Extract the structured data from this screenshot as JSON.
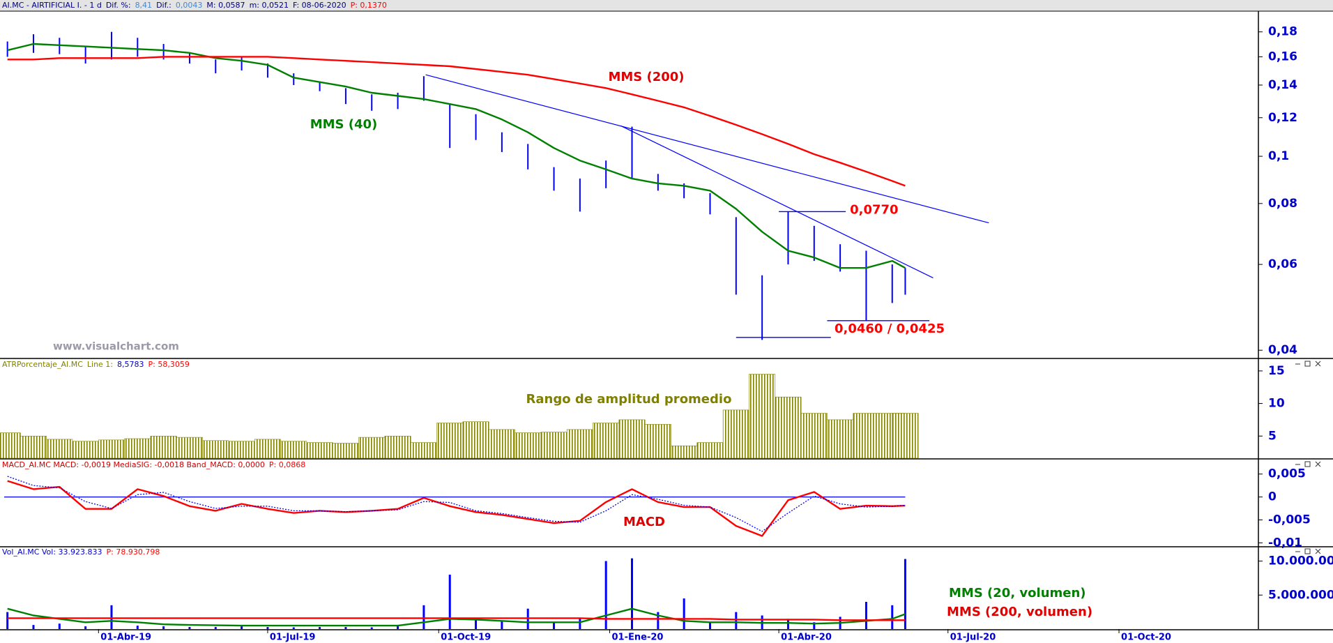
{
  "chart_data": {
    "type": "stock",
    "x": [
      "11-Feb-19",
      "25-Feb-19",
      "11-Mar-19",
      "25-Mar-19",
      "08-Abr-19",
      "22-Abr-19",
      "06-May-19",
      "20-May-19",
      "03-Jun-19",
      "17-Jun-19",
      "01-Jul-19",
      "15-Jul-19",
      "29-Jul-19",
      "12-Ago-19",
      "26-Ago-19",
      "09-Sep-19",
      "23-Sep-19",
      "07-Oct-19",
      "21-Oct-19",
      "04-Nov-19",
      "18-Nov-19",
      "02-Dic-19",
      "16-Dic-19",
      "30-Dic-19",
      "13-Ene-20",
      "27-Ene-20",
      "10-Feb-20",
      "24-Feb-20",
      "09-Mar-20",
      "23-Mar-20",
      "06-Abr-20",
      "20-Abr-20",
      "04-May-20",
      "18-May-20",
      "01-Jun-20",
      "08-Jun-20"
    ],
    "xlim": [
      "07-Feb-19",
      "15-Dic-20"
    ],
    "xticks": [
      "01-Abr-19",
      "01-Jul-19",
      "01-Oct-19",
      "01-Ene-20",
      "01-Abr-20",
      "01-Jul-20",
      "01-Oct-20"
    ],
    "panels": [
      {
        "type": "ohlc",
        "header": [
          {
            "text": "AI.MC - AIRTIFICIAL I. -  1 d",
            "color": "#000080"
          },
          {
            "text": "Dif. %:",
            "color": "#000080"
          },
          {
            "text": "8,41",
            "color": "#4a86c8"
          },
          {
            "text": "Dif.:",
            "color": "#000080"
          },
          {
            "text": "0,0043",
            "color": "#4a86c8"
          },
          {
            "text": "M: 0,0587",
            "color": "#000080"
          },
          {
            "text": "m: 0,0521",
            "color": "#000080"
          },
          {
            "text": "F: 08-06-2020",
            "color": "#000080"
          },
          {
            "text": "P: 0,1370",
            "color": "#ff0000"
          }
        ],
        "color": "#0000ff",
        "high": [
          0.172,
          0.178,
          0.175,
          0.168,
          0.18,
          0.175,
          0.17,
          0.163,
          0.158,
          0.16,
          0.155,
          0.148,
          0.142,
          0.138,
          0.134,
          0.135,
          0.146,
          0.128,
          0.122,
          0.112,
          0.106,
          0.095,
          0.09,
          0.098,
          0.115,
          0.092,
          0.088,
          0.084,
          0.075,
          0.057,
          0.077,
          0.072,
          0.066,
          0.064,
          0.06,
          0.059
        ],
        "low": [
          0.16,
          0.163,
          0.162,
          0.155,
          0.158,
          0.16,
          0.158,
          0.155,
          0.148,
          0.15,
          0.145,
          0.14,
          0.136,
          0.128,
          0.124,
          0.125,
          0.13,
          0.104,
          0.108,
          0.102,
          0.094,
          0.085,
          0.077,
          0.086,
          0.09,
          0.085,
          0.082,
          0.076,
          0.052,
          0.042,
          0.06,
          0.061,
          0.058,
          0.046,
          0.05,
          0.052
        ],
        "log": true,
        "ylim": [
          0.0386,
          0.1985
        ],
        "yticks": [
          {
            "value": 0.04,
            "label": "0,04"
          },
          {
            "value": 0.06,
            "label": "0,06"
          },
          {
            "value": 0.08,
            "label": "0,08"
          },
          {
            "value": 0.1,
            "label": "0,1"
          },
          {
            "value": 0.12,
            "label": "0,12"
          },
          {
            "value": 0.14,
            "label": "0,14"
          },
          {
            "value": 0.16,
            "label": "0,16"
          },
          {
            "value": 0.18,
            "label": "0,18"
          }
        ],
        "series": [
          {
            "name": "MMS (40)",
            "color": "#008000",
            "values": [
              0.165,
              0.17,
              0.169,
              0.168,
              0.167,
              0.166,
              0.165,
              0.163,
              0.159,
              0.157,
              0.154,
              0.145,
              0.142,
              0.139,
              0.135,
              0.133,
              0.131,
              0.128,
              0.125,
              0.119,
              0.112,
              0.104,
              0.098,
              0.094,
              0.09,
              0.088,
              0.087,
              0.085,
              0.078,
              0.07,
              0.064,
              0.062,
              0.059,
              0.059,
              0.061,
              0.059
            ]
          },
          {
            "name": "MMS (200)",
            "color": "#ff0000",
            "values": [
              0.158,
              0.158,
              0.159,
              0.159,
              0.159,
              0.159,
              0.16,
              0.16,
              0.16,
              0.16,
              0.16,
              0.159,
              0.158,
              0.157,
              0.156,
              0.155,
              0.154,
              0.153,
              0.151,
              0.149,
              0.147,
              0.144,
              0.141,
              0.138,
              0.134,
              0.13,
              0.126,
              0.121,
              0.116,
              0.111,
              0.106,
              0.101,
              0.097,
              0.093,
              0.089,
              0.087
            ]
          }
        ],
        "trendlines": [
          {
            "color": "#0000ff",
            "x": [
              "24-Sep-19",
              "23-Jul-20"
            ],
            "values": [
              0.147,
              0.073
            ]
          },
          {
            "color": "#0000ff",
            "x": [
              "07-Ene-20",
              "23-Jun-20"
            ],
            "values": [
              0.1155,
              0.0563
            ]
          }
        ],
        "levels": [
          {
            "value": 0.077,
            "label": "0,0770",
            "color": "#0000ff",
            "x": [
              "01-Abr-20",
              "07-May-20"
            ]
          },
          {
            "value": 0.046,
            "color": "#0000ff",
            "x": [
              "27-Abr-20",
              "21-Jun-20"
            ]
          },
          {
            "value": 0.0425,
            "color": "#0000ff",
            "x": [
              "09-Mar-20",
              "29-Abr-20"
            ]
          }
        ],
        "support_label": "0,0460 / 0,0425",
        "watermark": "www.visualchart.com"
      },
      {
        "type": "bar",
        "bar_style": "hatched",
        "header": [
          {
            "text": "ATRPorcentaje_AI.MC",
            "color": "#808000"
          },
          {
            "text": "Line 1:",
            "color": "#808000"
          },
          {
            "text": "8,5783",
            "color": "#0000cc"
          },
          {
            "text": "P: 58,3059",
            "color": "#ff0000"
          }
        ],
        "name": "Rango de amplitud promedio",
        "color": "#808000",
        "values": [
          5.5,
          5.0,
          4.5,
          4.2,
          4.4,
          4.6,
          5.0,
          4.8,
          4.3,
          4.2,
          4.5,
          4.2,
          4.0,
          3.9,
          4.8,
          5.0,
          4.0,
          7.0,
          7.2,
          6.0,
          5.5,
          5.6,
          6.0,
          7.0,
          7.5,
          6.8,
          3.5,
          4.0,
          9.0,
          14.5,
          11.0,
          8.5,
          7.5,
          8.5,
          8.5,
          8.5
        ],
        "ylim": [
          1.6,
          16.7
        ],
        "yticks": [
          5,
          10,
          15
        ]
      },
      {
        "type": "line",
        "header": [
          {
            "text": "MACD_AI.MC  MACD: -0,0019  MediaSIG: -0,0018  Band_MACD: 0,0000",
            "color": "#cc0000"
          },
          {
            "text": "P: 0,0868",
            "color": "#ff0000"
          }
        ],
        "band": 0,
        "band_color": "#0000ff",
        "ylim": [
          -0.0107,
          0.008
        ],
        "yticks": [
          {
            "value": 0.005,
            "label": "0,005"
          },
          0,
          {
            "value": -0.005,
            "label": "-0,005"
          },
          {
            "value": -0.01,
            "label": "-0,01"
          }
        ],
        "series": [
          {
            "name": "MACD",
            "color": "#ff0000",
            "values": [
              0.0035,
              0.0017,
              0.0022,
              -0.0026,
              -0.0026,
              0.0017,
              0.0002,
              -0.002,
              -0.003,
              -0.0015,
              -0.0026,
              -0.0035,
              -0.003,
              -0.0033,
              -0.003,
              -0.0026,
              -0.0002,
              -0.002,
              -0.0033,
              -0.0039,
              -0.0048,
              -0.0057,
              -0.0052,
              -0.0011,
              0.0017,
              -0.0011,
              -0.0022,
              -0.0022,
              -0.0063,
              -0.0085,
              -0.0007,
              0.0011,
              -0.0026,
              -0.0019,
              -0.002,
              -0.0019
            ]
          },
          {
            "color": "#0000ff",
            "style": "dotted",
            "values": [
              0.0045,
              0.0025,
              0.002,
              -0.001,
              -0.0025,
              0.0005,
              0.001,
              -0.001,
              -0.0025,
              -0.002,
              -0.002,
              -0.003,
              -0.003,
              -0.0032,
              -0.003,
              -0.0028,
              -0.001,
              -0.0012,
              -0.003,
              -0.0036,
              -0.0045,
              -0.0053,
              -0.0055,
              -0.003,
              0.0005,
              -0.0005,
              -0.0018,
              -0.0022,
              -0.0045,
              -0.0075,
              -0.0035,
              0.0002,
              -0.0015,
              -0.0022,
              -0.002,
              -0.0018
            ]
          }
        ]
      },
      {
        "type": "bar",
        "bar_style": "thin",
        "header": [
          {
            "text": "Vol_AI.MC  Vol: 33.923.833",
            "color": "#0000cc"
          },
          {
            "text": "P: 78.930.798",
            "color": "#ff0000"
          }
        ],
        "color": "#0000ff",
        "values": [
          2500000,
          600000,
          800000,
          400000,
          3500000,
          500000,
          400000,
          300000,
          300000,
          400000,
          300000,
          250000,
          300000,
          300000,
          250000,
          500000,
          3500000,
          8000000,
          1500000,
          1200000,
          3000000,
          1000000,
          1500000,
          10000000,
          10400000,
          2500000,
          4500000,
          1000000,
          2500000,
          2000000,
          1500000,
          1000000,
          1800000,
          4000000,
          3500000,
          10300000
        ],
        "ylim": [
          0,
          12000000
        ],
        "yticks": [
          {
            "value": 5000000,
            "label": "5.000.000"
          },
          {
            "value": 10000000,
            "label": "10.000.000"
          }
        ],
        "series": [
          {
            "name": "MMS (20, volumen)",
            "color": "#008000",
            "values": [
              3000000,
              2000000,
              1500000,
              1000000,
              1200000,
              1000000,
              700000,
              600000,
              550000,
              500000,
              500000,
              500000,
              500000,
              500000,
              500000,
              500000,
              1000000,
              1500000,
              1400000,
              1200000,
              1000000,
              1000000,
              1000000,
              2000000,
              3000000,
              2000000,
              1200000,
              1000000,
              1000000,
              900000,
              900000,
              800000,
              900000,
              1200000,
              1500000,
              2200000
            ]
          },
          {
            "name": "MMS (200, volumen)",
            "color": "#ff0000",
            "values": [
              1600000,
              1600000,
              1600000,
              1600000,
              1600000,
              1600000,
              1600000,
              1600000,
              1600000,
              1600000,
              1600000,
              1600000,
              1600000,
              1600000,
              1600000,
              1600000,
              1600000,
              1600000,
              1600000,
              1600000,
              1600000,
              1600000,
              1600000,
              1500000,
              1500000,
              1500000,
              1500000,
              1500000,
              1400000,
              1400000,
              1400000,
              1400000,
              1300000,
              1300000,
              1300000,
              1300000
            ]
          }
        ]
      }
    ]
  }
}
